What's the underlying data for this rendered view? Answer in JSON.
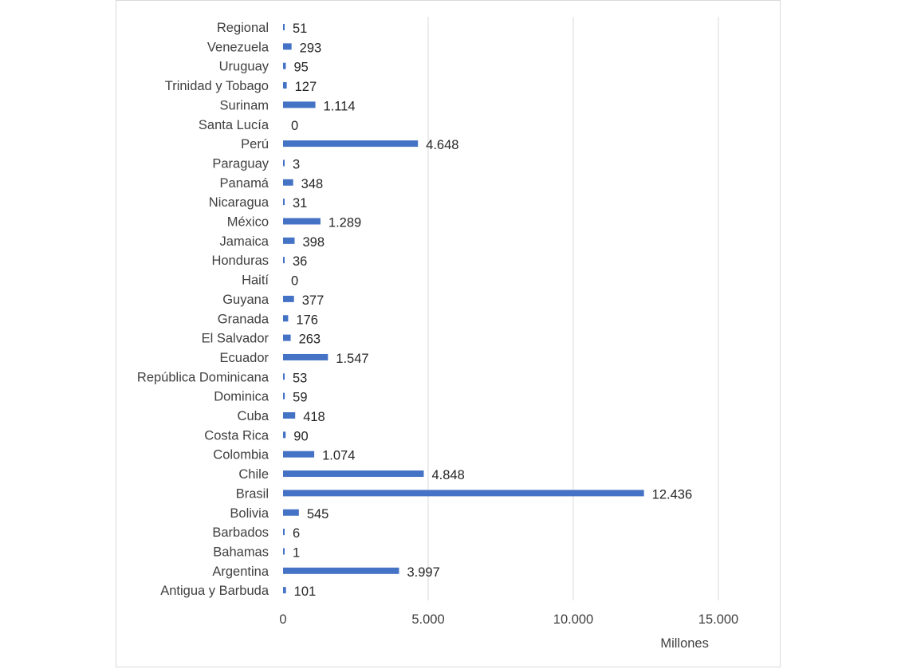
{
  "chart_data": {
    "type": "bar",
    "orientation": "horizontal",
    "categories": [
      "Regional",
      "Venezuela",
      "Uruguay",
      "Trinidad y Tobago",
      "Surinam",
      "Santa Lucía",
      "Perú",
      "Paraguay",
      "Panamá",
      "Nicaragua",
      "México",
      "Jamaica",
      "Honduras",
      "Haití",
      "Guyana",
      "Granada",
      "El Salvador",
      "Ecuador",
      "República Dominicana",
      "Dominica",
      "Cuba",
      "Costa Rica",
      "Colombia",
      "Chile",
      "Brasil",
      "Bolivia",
      "Barbados",
      "Bahamas",
      "Argentina",
      "Antigua y Barbuda"
    ],
    "values": [
      51,
      293,
      95,
      127,
      1114,
      0,
      4648,
      3,
      348,
      31,
      1289,
      398,
      36,
      0,
      377,
      176,
      263,
      1547,
      53,
      59,
      418,
      90,
      1074,
      4848,
      12436,
      545,
      6,
      1,
      3997,
      101
    ],
    "value_labels": [
      "51",
      "293",
      "95",
      "127",
      "1.114",
      "0",
      "4.648",
      "3",
      "348",
      "31",
      "1.289",
      "398",
      "36",
      "0",
      "377",
      "176",
      "263",
      "1.547",
      "53",
      "59",
      "418",
      "90",
      "1.074",
      "4.848",
      "12.436",
      "545",
      "6",
      "1",
      "3.997",
      "101"
    ],
    "xlim": [
      0,
      15000
    ],
    "x_ticks": [
      0,
      5000,
      10000,
      15000
    ],
    "x_tick_labels": [
      "0",
      "5.000",
      "10.000",
      "15.000"
    ],
    "xlabel": "Millones",
    "ylabel": "",
    "title": "",
    "grid": "vertical",
    "legend": "none",
    "bar_color": "#4472C4",
    "gridline_color": "#d9d9d9"
  }
}
